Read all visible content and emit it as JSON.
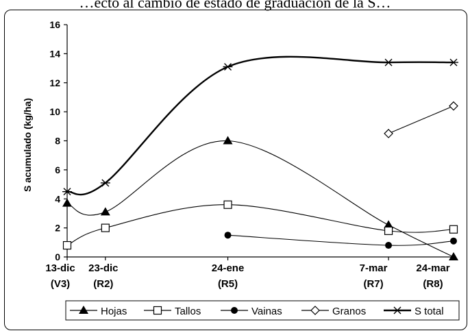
{
  "caption_fragment": "…ecto al cambio de estado de graduación de la S…",
  "chart_data": {
    "type": "line",
    "title": "",
    "xlabel": "",
    "ylabel": "S acumulado (kg/ha)",
    "ylim": [
      0,
      16
    ],
    "yticks": [
      0,
      2,
      4,
      6,
      8,
      10,
      12,
      14,
      16
    ],
    "x_ticks": [
      {
        "date": "13-dic",
        "stage": "(V3)",
        "x": 0
      },
      {
        "date": "23-dic",
        "stage": "(R2)",
        "x": 10
      },
      {
        "date": "24-ene",
        "stage": "(R5)",
        "x": 42
      },
      {
        "date": "7-mar",
        "stage": "(R7)",
        "x": 84
      },
      {
        "date": "24-mar",
        "stage": "(R8)",
        "x": 101
      }
    ],
    "xlim": [
      0,
      101
    ],
    "grid": false,
    "legend_position": "bottom",
    "series": [
      {
        "name": "Hojas",
        "marker": "filled-triangle",
        "x": [
          0,
          10,
          42,
          84,
          101
        ],
        "values": [
          3.7,
          3.1,
          8.0,
          2.2,
          0.0
        ]
      },
      {
        "name": "Tallos",
        "marker": "open-square",
        "x": [
          0,
          10,
          42,
          84,
          101
        ],
        "values": [
          0.8,
          2.0,
          3.6,
          1.8,
          1.9
        ]
      },
      {
        "name": "Vainas",
        "marker": "filled-circle",
        "x": [
          42,
          84,
          101
        ],
        "values": [
          1.5,
          0.8,
          1.1
        ]
      },
      {
        "name": "Granos",
        "marker": "open-diamond",
        "x": [
          84,
          101
        ],
        "values": [
          8.5,
          10.4
        ]
      },
      {
        "name": "S total",
        "marker": "asterisk",
        "x": [
          0,
          10,
          42,
          84,
          101
        ],
        "values": [
          4.5,
          5.1,
          13.1,
          13.4,
          13.4
        ]
      }
    ]
  }
}
